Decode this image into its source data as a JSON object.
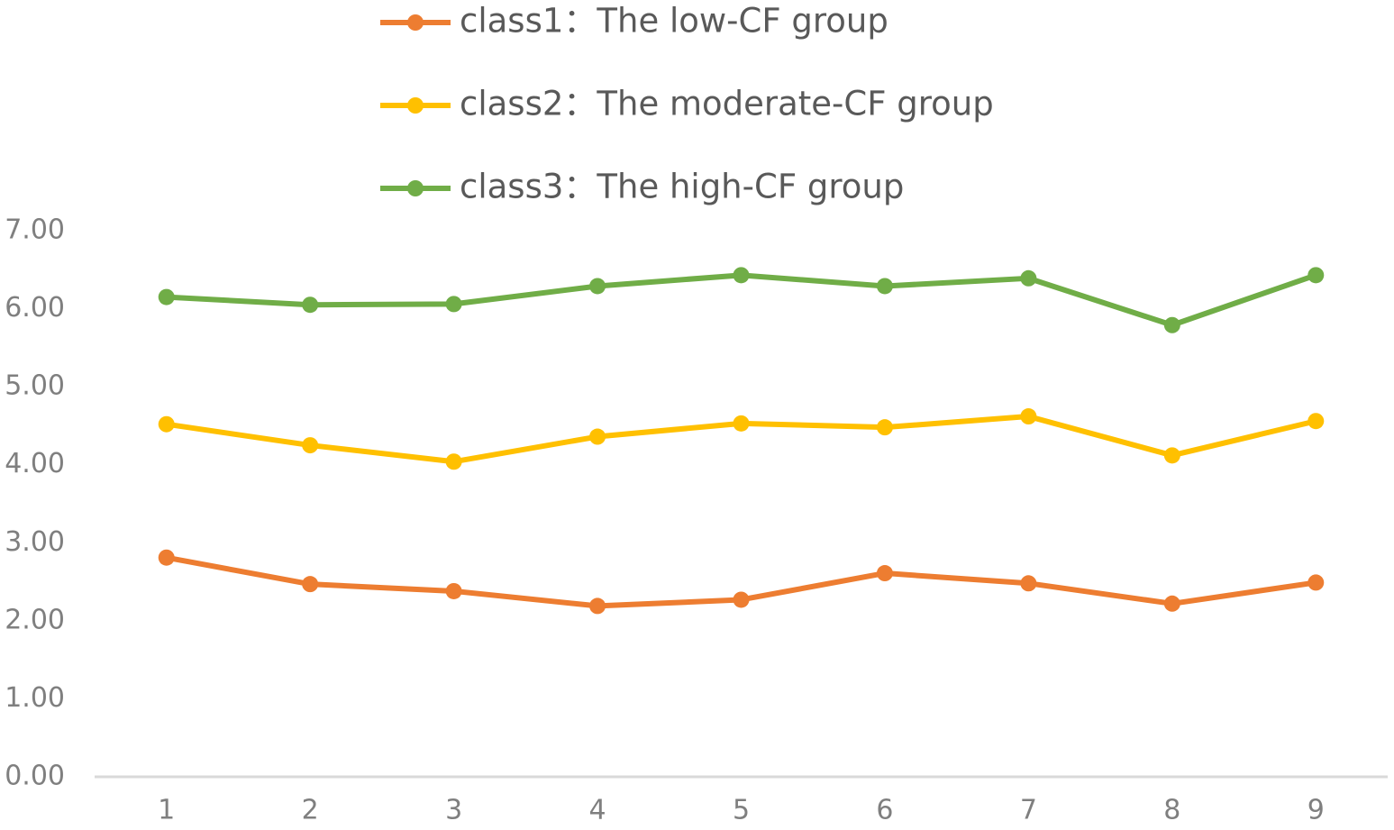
{
  "chart_data": {
    "type": "line",
    "categories": [
      "1",
      "2",
      "3",
      "4",
      "5",
      "6",
      "7",
      "8",
      "9"
    ],
    "series": [
      {
        "name": "class1：The low-CF group",
        "color": "#ED7D31",
        "values": [
          2.81,
          2.47,
          2.38,
          2.19,
          2.27,
          2.61,
          2.48,
          2.22,
          2.49
        ]
      },
      {
        "name": "class2：The moderate-CF group",
        "color": "#FFC000",
        "values": [
          4.52,
          4.25,
          4.04,
          4.36,
          4.53,
          4.48,
          4.62,
          4.12,
          4.56
        ]
      },
      {
        "name": "class3：The high-CF group",
        "color": "#70AD47",
        "values": [
          6.15,
          6.05,
          6.06,
          6.29,
          6.43,
          6.29,
          6.39,
          5.79,
          6.43
        ]
      }
    ],
    "ylim": [
      0,
      7
    ],
    "yticks": [
      {
        "value": 0,
        "label": "0.00"
      },
      {
        "value": 1,
        "label": "1.00"
      },
      {
        "value": 2,
        "label": "2.00"
      },
      {
        "value": 3,
        "label": "3.00"
      },
      {
        "value": 4,
        "label": "4.00"
      },
      {
        "value": 5,
        "label": "5.00"
      },
      {
        "value": 6,
        "label": "6.00"
      },
      {
        "value": 7,
        "label": "7.00"
      }
    ],
    "grid": false
  }
}
